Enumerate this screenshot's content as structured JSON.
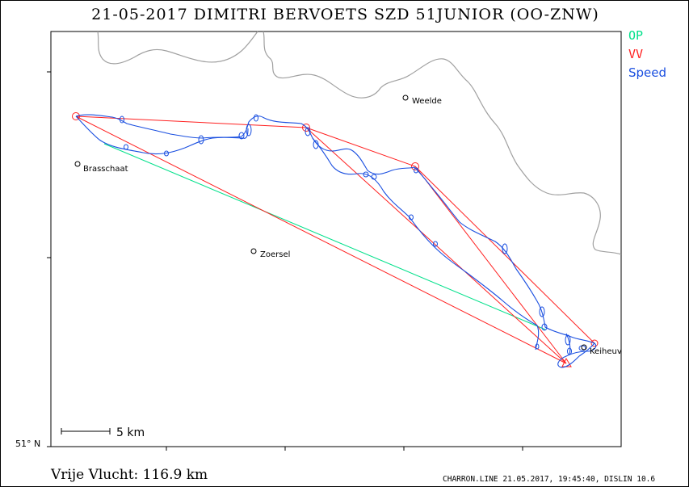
{
  "title": "21-05-2017   DIMITRI BERVOETS   SZD 51JUNIOR (OO-ZNW)",
  "legend": {
    "op": {
      "label": "OP",
      "color": "#00e08a"
    },
    "vv": {
      "label": "VV",
      "color": "#ff2020"
    },
    "speed": {
      "label": "Speed",
      "color": "#1a4fe0"
    }
  },
  "places": [
    {
      "name": "Weelde"
    },
    {
      "name": "Brasschaat"
    },
    {
      "name": "Zoersel"
    },
    {
      "name": "Keiheuv"
    }
  ],
  "scale": {
    "label": "5 km"
  },
  "latitude_label": "51° N",
  "distance": "Vrije Vlucht:  116.9 km",
  "footer": "CHARRON.LINE 21.05.2017, 19:45:40, DISLIN 10.6"
}
